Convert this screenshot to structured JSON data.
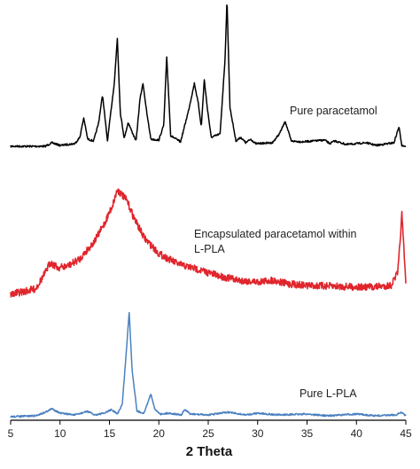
{
  "chart_data": {
    "type": "line",
    "title": "",
    "xlabel": "2 Theta",
    "ylabel": "",
    "xlim": [
      5,
      45
    ],
    "xticks": [
      5,
      10,
      15,
      20,
      25,
      30,
      35,
      40,
      45
    ],
    "grid": false,
    "legend": "none",
    "annotations": [
      {
        "text": "Pure paracetamol",
        "series": "Pure paracetamol"
      },
      {
        "text": "Encapsulated paracetamol within",
        "series": "Encapsulated paracetamol within L-PLA"
      },
      {
        "text": "L-PLA",
        "series": "Encapsulated paracetamol within L-PLA"
      },
      {
        "text": "Pure L-PLA",
        "series": "Pure L-PLA"
      }
    ],
    "series": [
      {
        "name": "Pure paracetamol",
        "color": "#000000",
        "x": [
          5,
          8.5,
          9.2,
          10,
          11.5,
          12.0,
          12.4,
          12.8,
          13.4,
          13.9,
          14.3,
          14.8,
          15.2,
          15.5,
          15.8,
          16.1,
          16.5,
          16.9,
          17.3,
          17.7,
          18.1,
          18.4,
          18.8,
          19.2,
          20.0,
          20.5,
          20.8,
          21.2,
          22.2,
          23.0,
          23.6,
          24.0,
          24.3,
          24.6,
          24.9,
          25.3,
          26.2,
          26.7,
          26.9,
          27.2,
          27.8,
          28.3,
          28.8,
          29.3,
          29.8,
          31.5,
          32.2,
          32.8,
          33.4,
          34.5,
          36.8,
          37.3,
          37.8,
          39.0,
          41.0,
          42.0,
          43.8,
          44.3,
          44.6,
          45
        ],
        "y": [
          0,
          0,
          4,
          1,
          3,
          10,
          32,
          8,
          6,
          26,
          58,
          6,
          44,
          72,
          122,
          38,
          9,
          27,
          16,
          6,
          54,
          71,
          36,
          8,
          7,
          24,
          101,
          12,
          5,
          40,
          71,
          48,
          22,
          75,
          44,
          10,
          14,
          98,
          165,
          44,
          6,
          10,
          4,
          8,
          3,
          4,
          14,
          28,
          6,
          5,
          7,
          3,
          6,
          2,
          4,
          1,
          4,
          22,
          1,
          0
        ]
      },
      {
        "name": "Encapsulated paracetamol within L-PLA",
        "color": "#e0252c",
        "x": [
          5,
          7.5,
          8.5,
          9.0,
          9.8,
          10.8,
          12.0,
          13.5,
          14.5,
          15.3,
          15.8,
          16.3,
          16.8,
          17.5,
          18.5,
          20.0,
          22.0,
          24.0,
          26.0,
          28.0,
          30.0,
          31.5,
          33.0,
          35.0,
          38.0,
          41.0,
          43.5,
          44.2,
          44.6,
          45.0
        ],
        "y": [
          0,
          6,
          24,
          36,
          30,
          32,
          40,
          60,
          80,
          100,
          118,
          112,
          105,
          86,
          64,
          46,
          34,
          28,
          21,
          16,
          14,
          16,
          12,
          10,
          9,
          8,
          10,
          25,
          90,
          12
        ]
      },
      {
        "name": "Pure L-PLA",
        "color": "#4a80c0",
        "x": [
          5,
          7.5,
          8.5,
          9.2,
          10.0,
          11.5,
          12.8,
          13.5,
          14.5,
          15.2,
          15.8,
          16.3,
          16.7,
          17.0,
          17.3,
          17.8,
          18.5,
          19.2,
          19.6,
          20.2,
          21.0,
          22.3,
          22.6,
          23.2,
          25.0,
          27.0,
          28.8,
          30.0,
          32.0,
          35.0,
          37.0,
          40.0,
          42.0,
          44.0,
          44.5,
          45
        ],
        "y": [
          0,
          1,
          5,
          9,
          4,
          2,
          6,
          2,
          4,
          8,
          3,
          14,
          72,
          118,
          52,
          6,
          4,
          26,
          8,
          3,
          4,
          2,
          8,
          3,
          2,
          5,
          2,
          4,
          2,
          3,
          1,
          3,
          1,
          2,
          5,
          1
        ]
      }
    ]
  }
}
